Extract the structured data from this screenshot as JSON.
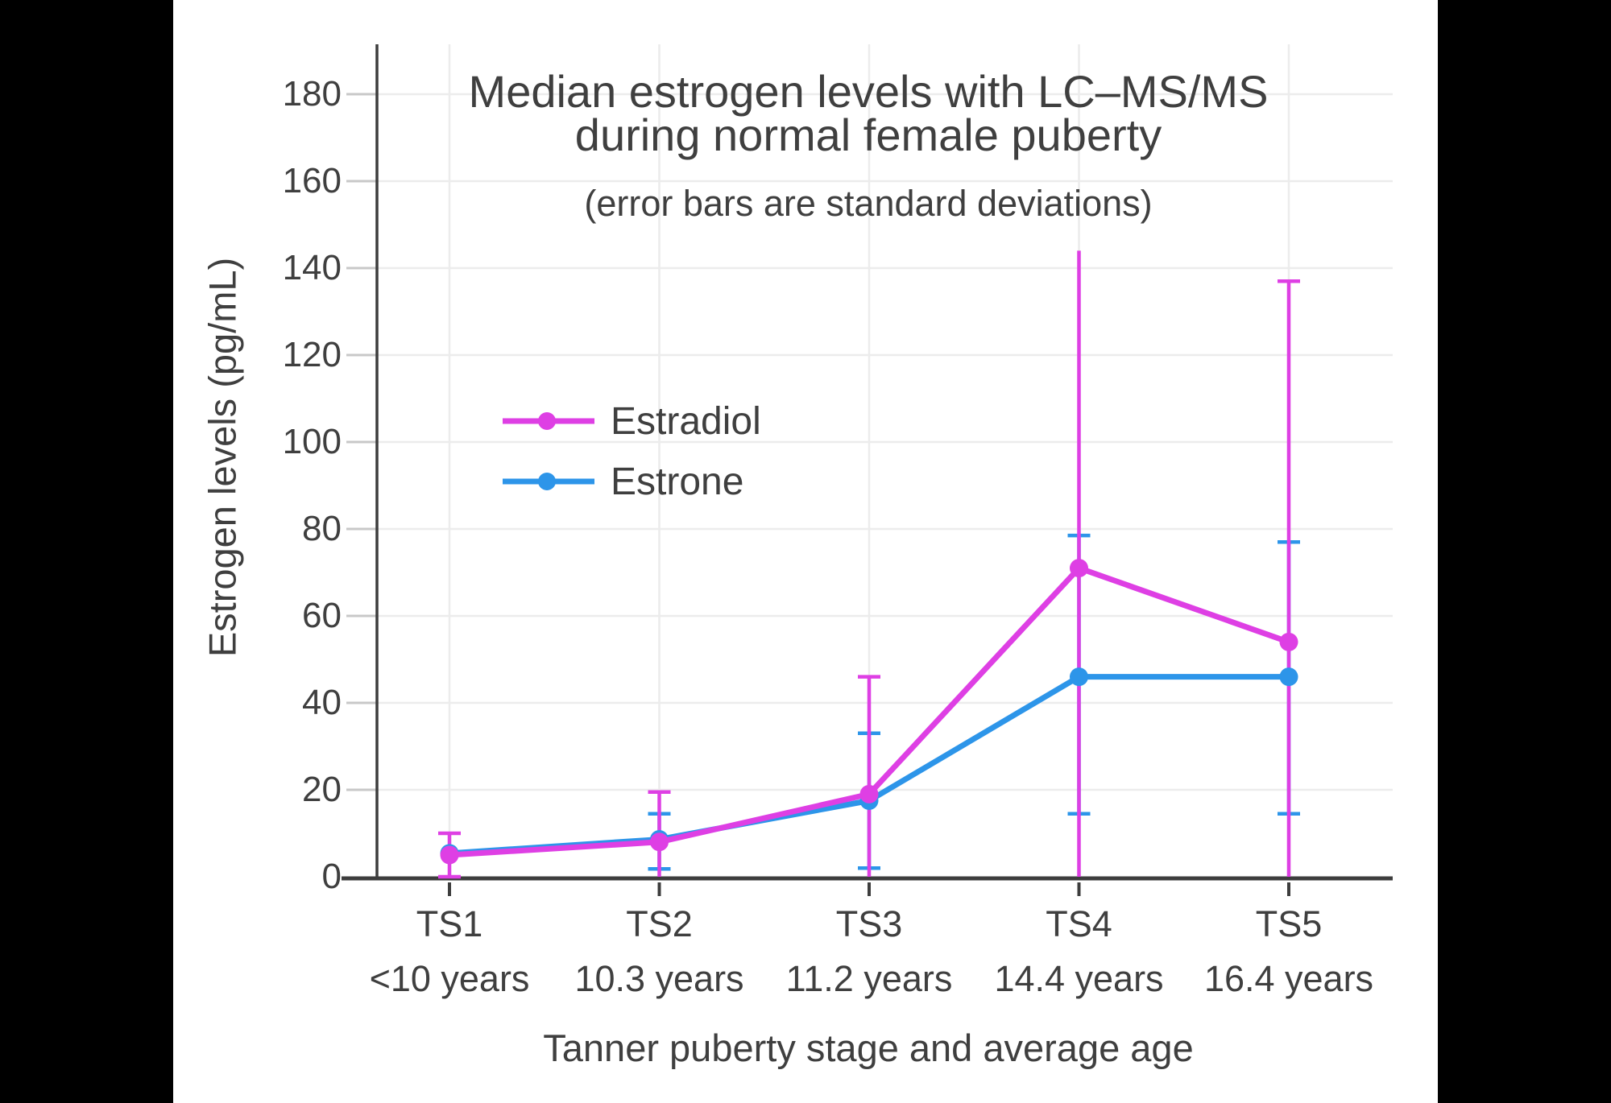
{
  "window": {
    "letterbox_color": "#000000",
    "canvas_color": "#ffffff"
  },
  "chart_data": {
    "type": "line",
    "title": "Median estrogen levels with LC–MS/MS during normal female puberty",
    "title_lines": [
      "Median estrogen levels with LC–MS/MS",
      "during normal female puberty"
    ],
    "subtitle": "(error bars are standard deviations)",
    "xlabel": "Tanner puberty stage and average age",
    "ylabel": "Estrogen levels (pg/mL)",
    "categories": [
      "TS1",
      "TS2",
      "TS3",
      "TS4",
      "TS5"
    ],
    "category_ages": [
      "<10 years",
      "10.3 years",
      "11.2 years",
      "14.4 years",
      "16.4 years"
    ],
    "yticks": [
      0,
      20,
      40,
      60,
      80,
      100,
      120,
      140,
      160,
      180
    ],
    "ylim": [
      0,
      192
    ],
    "grid": true,
    "legend_position": "inside upper-left",
    "error_bar_note": "standard deviations, clipped at 0",
    "axis_color": "#3d3d3d",
    "text_color": "#3f3f3f",
    "gridline_color": "#ececec",
    "minor_tick_color": "#c8c8c8",
    "series": [
      {
        "name": "Estradiol",
        "color": "#de3fe4",
        "values": [
          5,
          8,
          19,
          71,
          54
        ],
        "error_top": [
          10,
          19.5,
          46,
          144,
          137
        ],
        "error_bottom": [
          0,
          0,
          0,
          0,
          0
        ],
        "top_caps": [
          true,
          true,
          true,
          false,
          true
        ],
        "bottom_caps": [
          true,
          false,
          false,
          false,
          false
        ]
      },
      {
        "name": "Estrone",
        "color": "#2d95e9",
        "values": [
          5.4,
          8.6,
          17.5,
          46,
          46
        ],
        "error_top": [
          null,
          14.5,
          33,
          78.5,
          77
        ],
        "error_bottom": [
          null,
          1.8,
          2,
          14.5,
          14.5
        ],
        "top_caps": [
          false,
          true,
          true,
          true,
          true
        ],
        "bottom_caps": [
          false,
          true,
          true,
          true,
          true
        ]
      }
    ]
  }
}
